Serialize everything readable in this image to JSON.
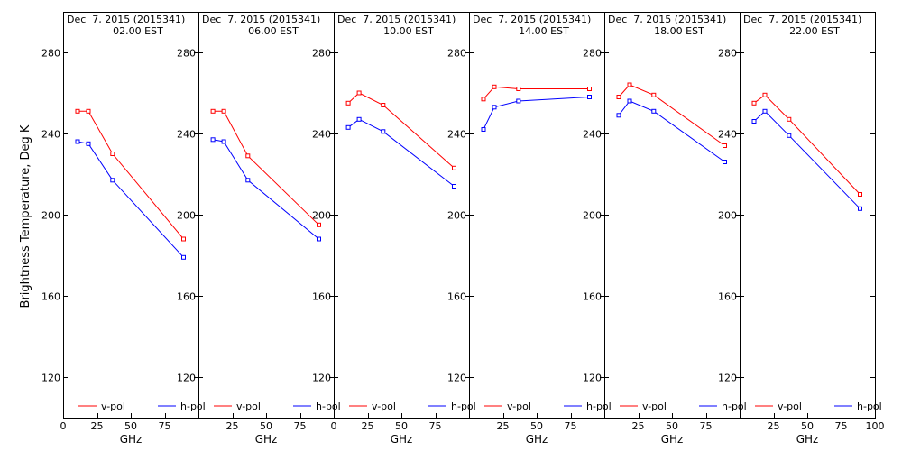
{
  "figure": {
    "ylabel": "Brightness Temperature, Deg K"
  },
  "chart_data": [
    {
      "type": "line",
      "title": "Dec  7, 2015 (2015341)",
      "subtitle": "02.00 EST",
      "xlabel": "GHz",
      "ylabel": "Brightness Temperature, Deg K",
      "xlim": [
        0,
        100
      ],
      "ylim": [
        100,
        300
      ],
      "xticks": [
        0,
        25,
        50,
        75
      ],
      "yticks": [
        120,
        160,
        200,
        240,
        280
      ],
      "legend": "bottom",
      "series": [
        {
          "name": "v-pol",
          "color": "#ff0000",
          "x": [
            10.7,
            18.7,
            36.5,
            89.0
          ],
          "y": [
            251,
            251,
            230,
            188
          ]
        },
        {
          "name": "h-pol",
          "color": "#0000ff",
          "x": [
            10.7,
            18.7,
            36.5,
            89.0
          ],
          "y": [
            236,
            235,
            217,
            179
          ]
        }
      ]
    },
    {
      "type": "line",
      "title": "Dec  7, 2015 (2015341)",
      "subtitle": "06.00 EST",
      "xlabel": "GHz",
      "ylabel": "",
      "xlim": [
        0,
        100
      ],
      "ylim": [
        100,
        300
      ],
      "xticks": [
        25,
        50,
        75
      ],
      "yticks": [
        120,
        160,
        200,
        240,
        280
      ],
      "legend": "bottom",
      "series": [
        {
          "name": "v-pol",
          "color": "#ff0000",
          "x": [
            10.7,
            18.7,
            36.5,
            89.0
          ],
          "y": [
            251,
            251,
            229,
            195
          ]
        },
        {
          "name": "h-pol",
          "color": "#0000ff",
          "x": [
            10.7,
            18.7,
            36.5,
            89.0
          ],
          "y": [
            237,
            236,
            217,
            188
          ]
        }
      ]
    },
    {
      "type": "line",
      "title": "Dec  7, 2015 (2015341)",
      "subtitle": "10.00 EST",
      "xlabel": "GHz",
      "ylabel": "",
      "xlim": [
        0,
        100
      ],
      "ylim": [
        100,
        300
      ],
      "xticks": [
        0,
        25,
        50,
        75
      ],
      "yticks": [
        120,
        160,
        200,
        240,
        280
      ],
      "legend": "bottom",
      "series": [
        {
          "name": "v-pol",
          "color": "#ff0000",
          "x": [
            10.7,
            18.7,
            36.5,
            89.0
          ],
          "y": [
            255,
            260,
            254,
            223
          ]
        },
        {
          "name": "h-pol",
          "color": "#0000ff",
          "x": [
            10.7,
            18.7,
            36.5,
            89.0
          ],
          "y": [
            243,
            247,
            241,
            214
          ]
        }
      ]
    },
    {
      "type": "line",
      "title": "Dec  7, 2015 (2015341)",
      "subtitle": "14.00 EST",
      "xlabel": "GHz",
      "ylabel": "",
      "xlim": [
        0,
        100
      ],
      "ylim": [
        100,
        300
      ],
      "xticks": [
        25,
        50,
        75
      ],
      "yticks": [
        120,
        160,
        200,
        240,
        280
      ],
      "legend": "bottom",
      "series": [
        {
          "name": "v-pol",
          "color": "#ff0000",
          "x": [
            10.7,
            18.7,
            36.5,
            89.0
          ],
          "y": [
            257,
            263,
            262,
            262
          ]
        },
        {
          "name": "h-pol",
          "color": "#0000ff",
          "x": [
            10.7,
            18.7,
            36.5,
            89.0
          ],
          "y": [
            242,
            253,
            256,
            258
          ]
        }
      ]
    },
    {
      "type": "line",
      "title": "Dec  7, 2015 (2015341)",
      "subtitle": "18.00 EST",
      "xlabel": "GHz",
      "ylabel": "",
      "xlim": [
        0,
        100
      ],
      "ylim": [
        100,
        300
      ],
      "xticks": [
        25,
        50,
        75
      ],
      "yticks": [
        120,
        160,
        200,
        240,
        280
      ],
      "legend": "bottom",
      "series": [
        {
          "name": "v-pol",
          "color": "#ff0000",
          "x": [
            10.7,
            18.7,
            36.5,
            89.0
          ],
          "y": [
            258,
            264,
            259,
            234
          ]
        },
        {
          "name": "h-pol",
          "color": "#0000ff",
          "x": [
            10.7,
            18.7,
            36.5,
            89.0
          ],
          "y": [
            249,
            256,
            251,
            226
          ]
        }
      ]
    },
    {
      "type": "line",
      "title": "Dec  7, 2015 (2015341)",
      "subtitle": "22.00 EST",
      "xlabel": "GHz",
      "ylabel": "",
      "xlim": [
        0,
        100
      ],
      "ylim": [
        100,
        300
      ],
      "xticks": [
        25,
        50,
        75,
        100
      ],
      "yticks": [
        120,
        160,
        200,
        240,
        280
      ],
      "legend": "bottom",
      "series": [
        {
          "name": "v-pol",
          "color": "#ff0000",
          "x": [
            10.7,
            18.7,
            36.5,
            89.0
          ],
          "y": [
            255,
            259,
            247,
            210
          ]
        },
        {
          "name": "h-pol",
          "color": "#0000ff",
          "x": [
            10.7,
            18.7,
            36.5,
            89.0
          ],
          "y": [
            246,
            251,
            239,
            203
          ]
        }
      ]
    }
  ]
}
